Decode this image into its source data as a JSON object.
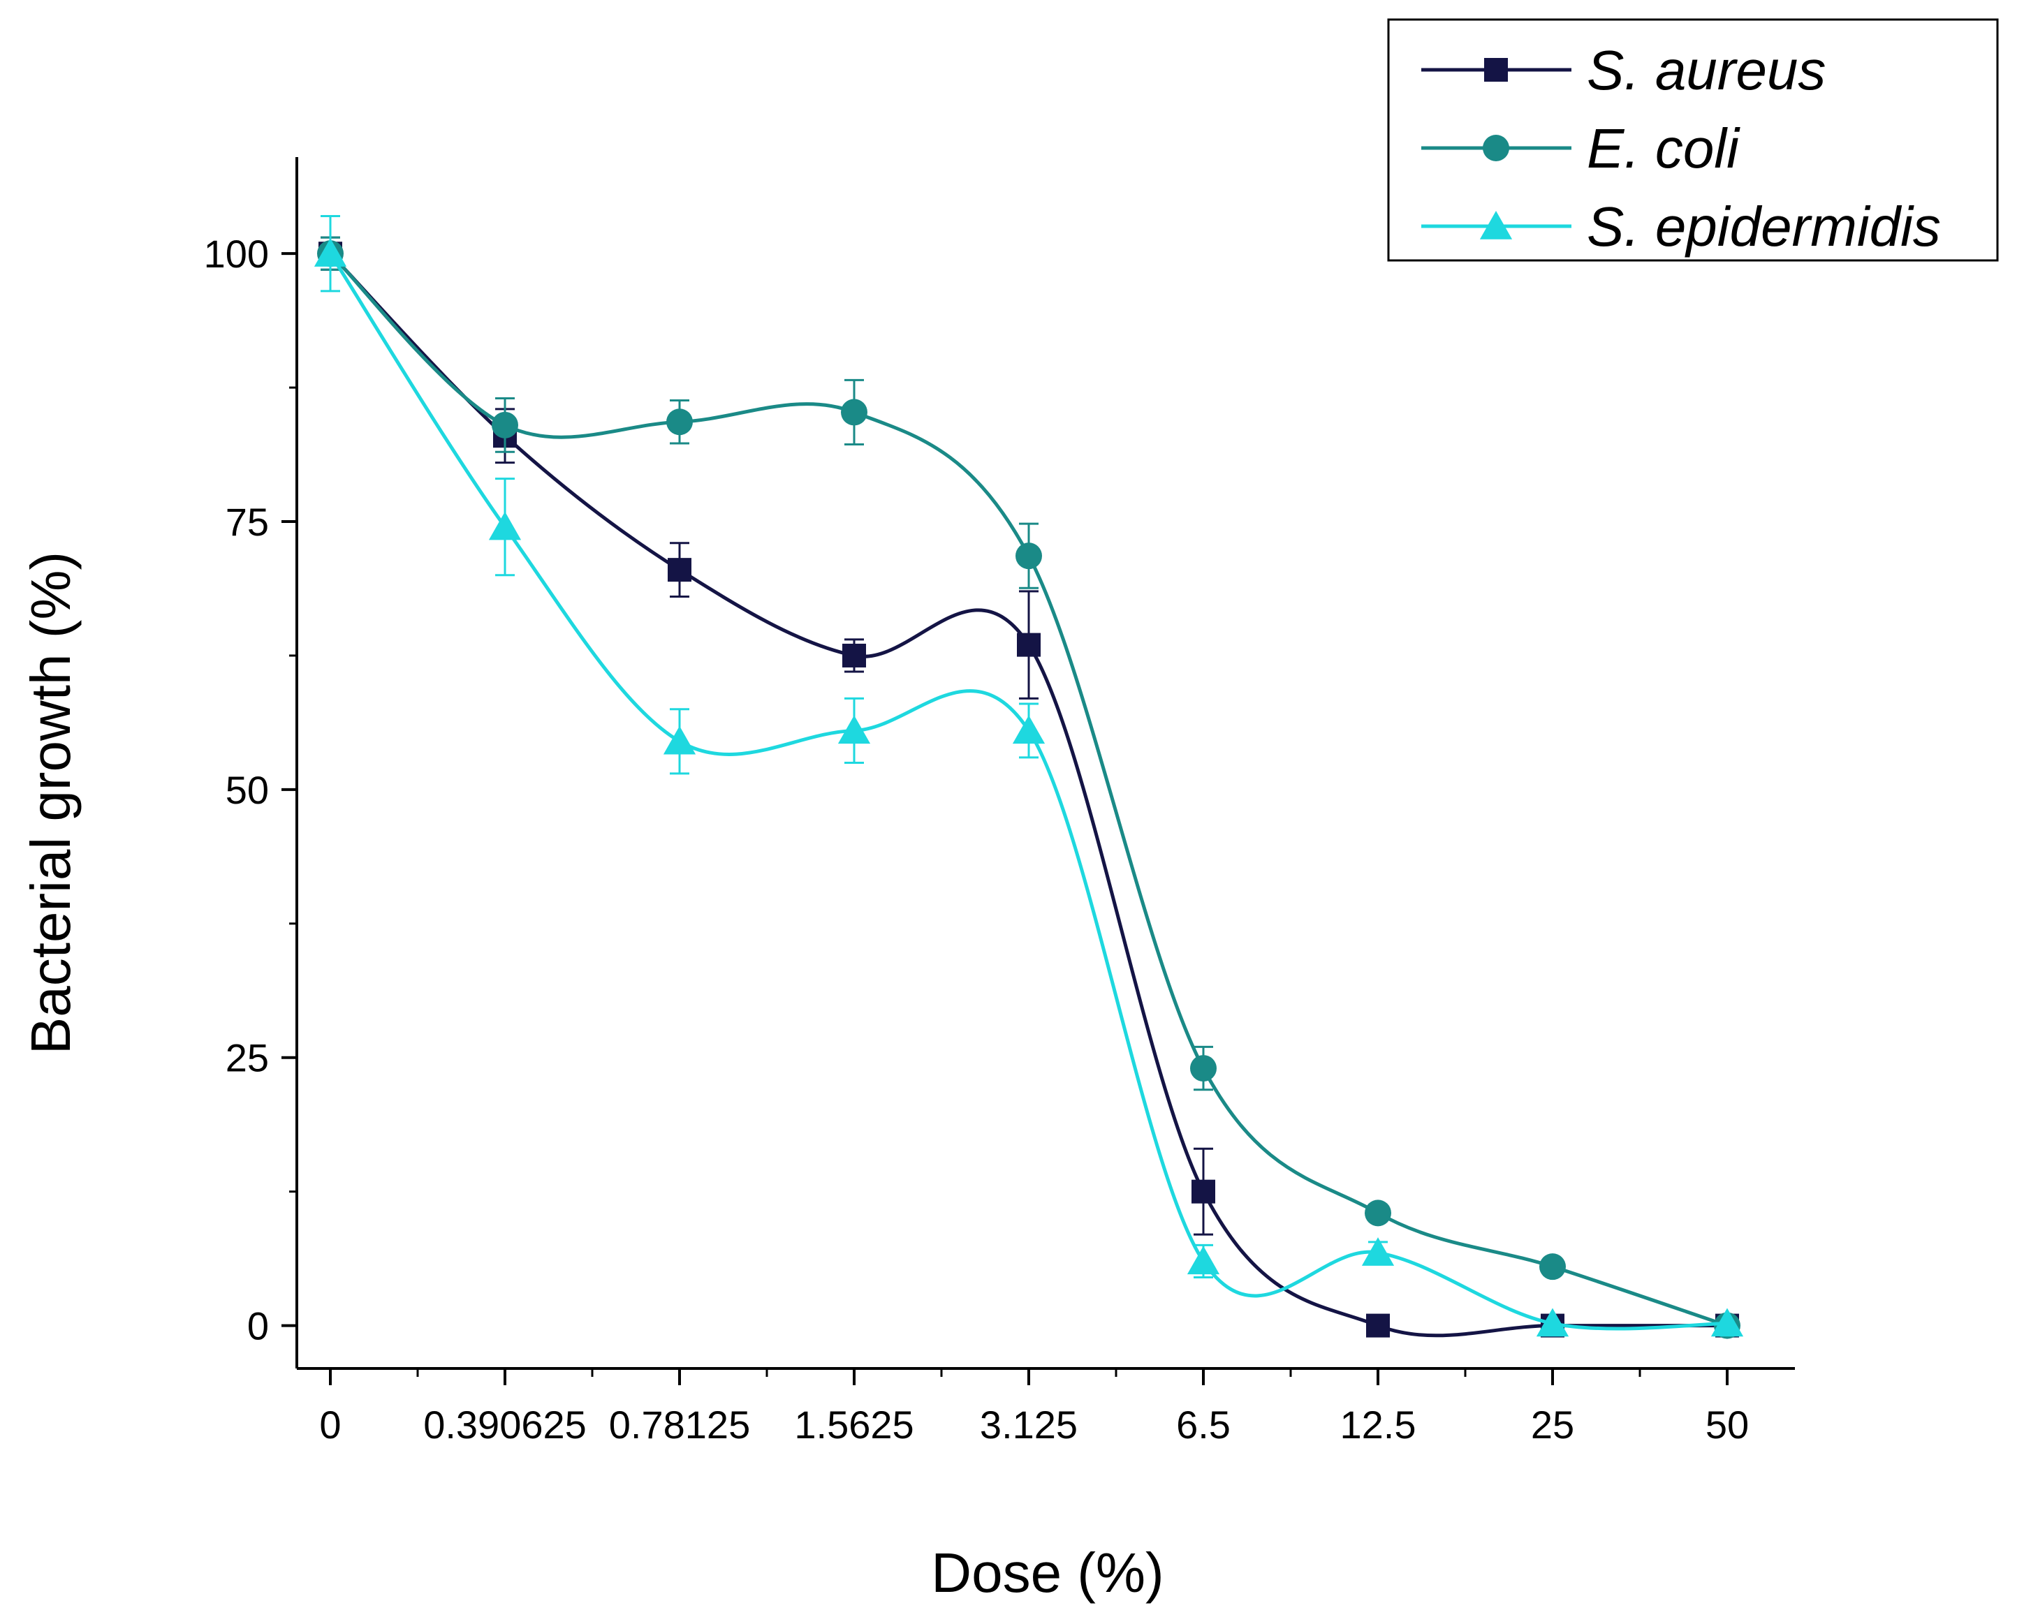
{
  "chart_data": {
    "type": "line",
    "title": "",
    "xlabel": "Dose (%)",
    "ylabel": "Bacterial growth (%)",
    "categories": [
      "0",
      "0.390625",
      "0.78125",
      "1.5625",
      "3.125",
      "6.5",
      "12.5",
      "25",
      "50"
    ],
    "y_ticks": [
      "0",
      "25",
      "50",
      "75",
      "100"
    ],
    "ylim": [
      -4,
      109
    ],
    "grid": false,
    "legend_position": "top-right",
    "series": [
      {
        "name": "S. aureus",
        "marker": "square",
        "color": "#141445",
        "values": [
          100,
          83,
          70.5,
          62.5,
          63.5,
          12.5,
          0,
          0,
          0
        ],
        "errors": [
          1.5,
          2.5,
          2.5,
          1.5,
          5,
          4,
          0,
          0,
          0
        ]
      },
      {
        "name": "E. coli",
        "marker": "circle",
        "color": "#1a8a87",
        "values": [
          100,
          84,
          84.3,
          85.2,
          71.8,
          24,
          10.5,
          5.5,
          0
        ],
        "errors": [
          1.5,
          2.5,
          2,
          3,
          3,
          2,
          0,
          0,
          0
        ]
      },
      {
        "name": "S. epidermidis",
        "marker": "triangle",
        "color": "#1ed8df",
        "values": [
          100,
          74.5,
          54.5,
          55.5,
          55.5,
          6,
          6.8,
          0.2,
          0.2
        ],
        "errors": [
          3.5,
          4.5,
          3,
          3,
          2.5,
          1.5,
          1,
          0,
          0
        ]
      }
    ]
  }
}
